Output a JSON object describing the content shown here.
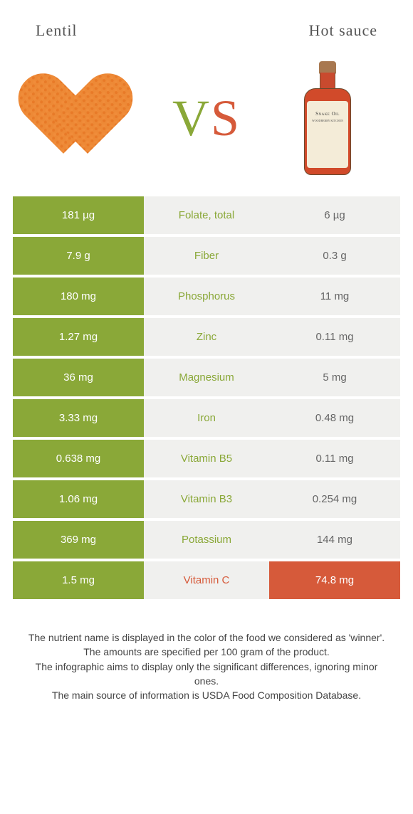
{
  "header": {
    "left_title": "Lentil",
    "right_title": "Hot sauce"
  },
  "vs": {
    "v": "V",
    "s": "S"
  },
  "bottle_label": {
    "brand": "Snake Oil",
    "sub": "WOODBERRY KITCHEN"
  },
  "colors": {
    "lentil": "#8aa838",
    "hotsauce": "#d65a3a",
    "mid_bg": "#f0f0ee",
    "neutral_right_text": "#666666"
  },
  "rows": [
    {
      "left": "181 µg",
      "label": "Folate, total",
      "right": "6 µg",
      "winner": "lentil"
    },
    {
      "left": "7.9 g",
      "label": "Fiber",
      "right": "0.3 g",
      "winner": "lentil"
    },
    {
      "left": "180 mg",
      "label": "Phosphorus",
      "right": "11 mg",
      "winner": "lentil"
    },
    {
      "left": "1.27 mg",
      "label": "Zinc",
      "right": "0.11 mg",
      "winner": "lentil"
    },
    {
      "left": "36 mg",
      "label": "Magnesium",
      "right": "5 mg",
      "winner": "lentil"
    },
    {
      "left": "3.33 mg",
      "label": "Iron",
      "right": "0.48 mg",
      "winner": "lentil"
    },
    {
      "left": "0.638 mg",
      "label": "Vitamin B5",
      "right": "0.11 mg",
      "winner": "lentil"
    },
    {
      "left": "1.06 mg",
      "label": "Vitamin B3",
      "right": "0.254 mg",
      "winner": "lentil"
    },
    {
      "left": "369 mg",
      "label": "Potassium",
      "right": "144 mg",
      "winner": "lentil"
    },
    {
      "left": "1.5 mg",
      "label": "Vitamin C",
      "right": "74.8 mg",
      "winner": "hotsauce"
    }
  ],
  "footer": {
    "line1": "The nutrient name is displayed in the color of the food we considered as 'winner'.",
    "line2": "The amounts are specified per 100 gram of the product.",
    "line3": "The infographic aims to display only the significant differences, ignoring minor ones.",
    "line4": "The main source of information is USDA Food Composition Database."
  }
}
